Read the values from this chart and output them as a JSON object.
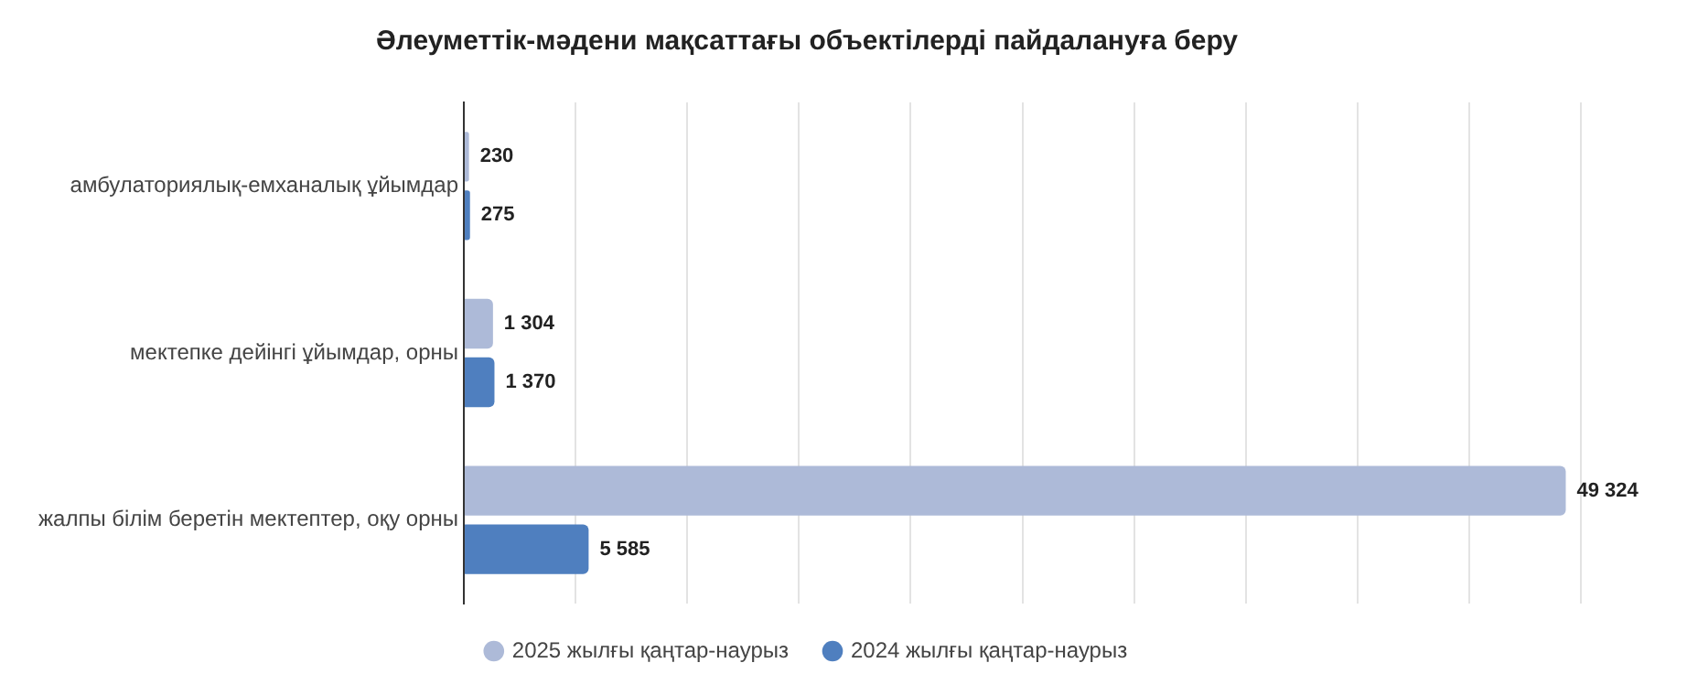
{
  "chart_data": {
    "type": "bar",
    "orientation": "horizontal",
    "title": "Әлеуметтік-мәдени мақсаттағы объектілерді пайдалануға беру",
    "categories": [
      "амбулаториялық-емханалық ұйымдар",
      "мектепке дейінгі ұйымдар, орны",
      "жалпы білім беретін мектептер, оқу орны"
    ],
    "series": [
      {
        "name": "2025 жылғы қаңтар-наурыз",
        "color": "#adbad8",
        "values": [
          230,
          1304,
          49324
        ],
        "value_labels": [
          "230",
          "1 304",
          "49 324"
        ]
      },
      {
        "name": "2024 жылғы қаңтар-наурыз",
        "color": "#4f7fbf",
        "values": [
          275,
          1370,
          5585
        ],
        "value_labels": [
          "275",
          "1 370",
          "5 585"
        ]
      }
    ],
    "xlim": [
      0,
      50000
    ],
    "xticks": [
      {
        "value": 0,
        "label": null
      },
      {
        "value": 5000,
        "label": null
      },
      {
        "value": 10000,
        "label": null
      },
      {
        "value": 15000,
        "label": null
      },
      {
        "value": 20000,
        "label": null
      },
      {
        "value": 25000,
        "label": null
      },
      {
        "value": 30000,
        "label": null
      },
      {
        "value": 35000,
        "label": null
      },
      {
        "value": 40000,
        "label": null
      },
      {
        "value": 45000,
        "label": null
      },
      {
        "value": 50000,
        "label": null
      }
    ],
    "grid": "x",
    "tick_labels": "y",
    "legend": "bottom",
    "marker": "circle"
  }
}
